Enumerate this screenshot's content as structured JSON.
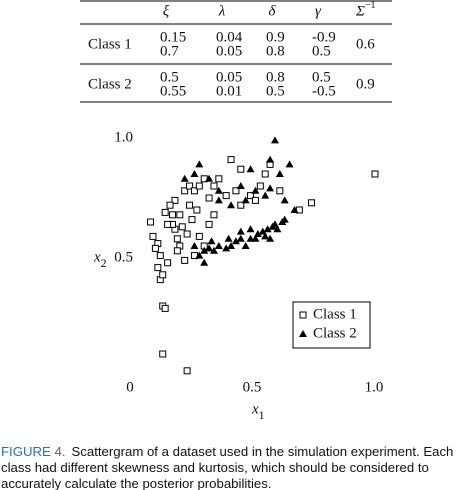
{
  "table": {
    "header": [
      "ξ",
      "λ",
      "δ",
      "γ",
      "Σ"
    ],
    "header_exponent": "−1",
    "groups": [
      {
        "label": "Class 1",
        "rows": [
          [
            "0.15",
            "0.04",
            "0.9",
            "-0.9"
          ],
          [
            "0.7",
            "0.05",
            "0.8",
            "0.5"
          ]
        ],
        "sigma_inv": "0.6"
      },
      {
        "label": "Class 2",
        "rows": [
          [
            "0.5",
            "0.05",
            "0.8",
            "0.5"
          ],
          [
            "0.55",
            "0.01",
            "0.5",
            "-0.5"
          ]
        ],
        "sigma_inv": "0.9"
      }
    ]
  },
  "chart_data": {
    "type": "scatter",
    "xlabel": "x",
    "xlabel_sub": "1",
    "ylabel": "x",
    "ylabel_sub": "2",
    "xlim": [
      0,
      1
    ],
    "ylim": [
      0,
      1
    ],
    "xticks": [
      0,
      0.5,
      {
        "value": 1,
        "label": "1.0"
      }
    ],
    "yticks": [
      0.5,
      {
        "value": 1,
        "label": "1.0"
      }
    ],
    "legend": "lower right",
    "series": [
      {
        "name": "Class 1",
        "marker": "square",
        "color": "#000000",
        "x": [
          0.08,
          0.09,
          0.11,
          0.12,
          0.11,
          0.12,
          0.13,
          0.14,
          0.13,
          0.23,
          0.18,
          0.2,
          0.22,
          0.24,
          0.26,
          0.28,
          0.3,
          0.34,
          0.36,
          0.41,
          0.43,
          0.45,
          0.49,
          0.53,
          0.55,
          0.57,
          0.61,
          0.69,
          0.74,
          1.0,
          0.16,
          0.17,
          0.18,
          0.19,
          0.21,
          0.23,
          0.25,
          0.27,
          0.28,
          0.3,
          0.32,
          0.34,
          0.15,
          0.13,
          0.1,
          0.17,
          0.2,
          0.14,
          0.15,
          0.24,
          0.32,
          0.39,
          0.45,
          0.51,
          0.26,
          0.22,
          0.19
        ],
        "y": [
          0.65,
          0.59,
          0.56,
          0.51,
          0.46,
          0.41,
          0.3,
          0.29,
          0.1,
          0.03,
          0.74,
          0.68,
          0.78,
          0.8,
          0.78,
          0.8,
          0.83,
          0.8,
          0.83,
          0.91,
          0.78,
          0.87,
          0.76,
          0.8,
          0.85,
          0.89,
          0.78,
          0.7,
          0.73,
          0.85,
          0.72,
          0.68,
          0.62,
          0.58,
          0.63,
          0.6,
          0.66,
          0.7,
          0.59,
          0.55,
          0.64,
          0.68,
          0.48,
          0.43,
          0.54,
          0.64,
          0.55,
          0.69,
          0.64,
          0.72,
          0.75,
          0.76,
          0.72,
          0.74,
          0.51,
          0.49,
          0.53
        ]
      },
      {
        "name": "Class 2",
        "marker": "triangle",
        "color": "#000000",
        "x": [
          0.26,
          0.28,
          0.3,
          0.32,
          0.34,
          0.36,
          0.39,
          0.41,
          0.43,
          0.45,
          0.47,
          0.49,
          0.51,
          0.52,
          0.54,
          0.55,
          0.56,
          0.58,
          0.59,
          0.6,
          0.62,
          0.45,
          0.49,
          0.4,
          0.33,
          0.3,
          0.57,
          0.63,
          0.22,
          0.26,
          0.28,
          0.32,
          0.36,
          0.45,
          0.51,
          0.55,
          0.57,
          0.59,
          0.61,
          0.65,
          0.67,
          0.63,
          0.57,
          0.49,
          0.47,
          0.41,
          0.36
        ],
        "y": [
          0.55,
          0.51,
          0.53,
          0.54,
          0.53,
          0.55,
          0.54,
          0.55,
          0.57,
          0.58,
          0.55,
          0.58,
          0.58,
          0.6,
          0.61,
          0.59,
          0.62,
          0.63,
          0.64,
          0.62,
          0.65,
          0.61,
          0.62,
          0.58,
          0.57,
          0.48,
          0.58,
          0.66,
          0.83,
          0.85,
          0.89,
          0.83,
          0.78,
          0.8,
          0.78,
          0.76,
          0.91,
          0.99,
          0.85,
          0.89,
          0.7,
          0.74,
          0.79,
          0.87,
          0.74,
          0.72,
          0.74
        ]
      }
    ]
  },
  "caption": {
    "label": "FIGURE 4.",
    "lines": [
      "Scattergram of a dataset used in the simulation experiment. Each",
      "class had different skewness and kurtosis, which should be considered to",
      "accurately calculate the posterior probabilities."
    ]
  }
}
